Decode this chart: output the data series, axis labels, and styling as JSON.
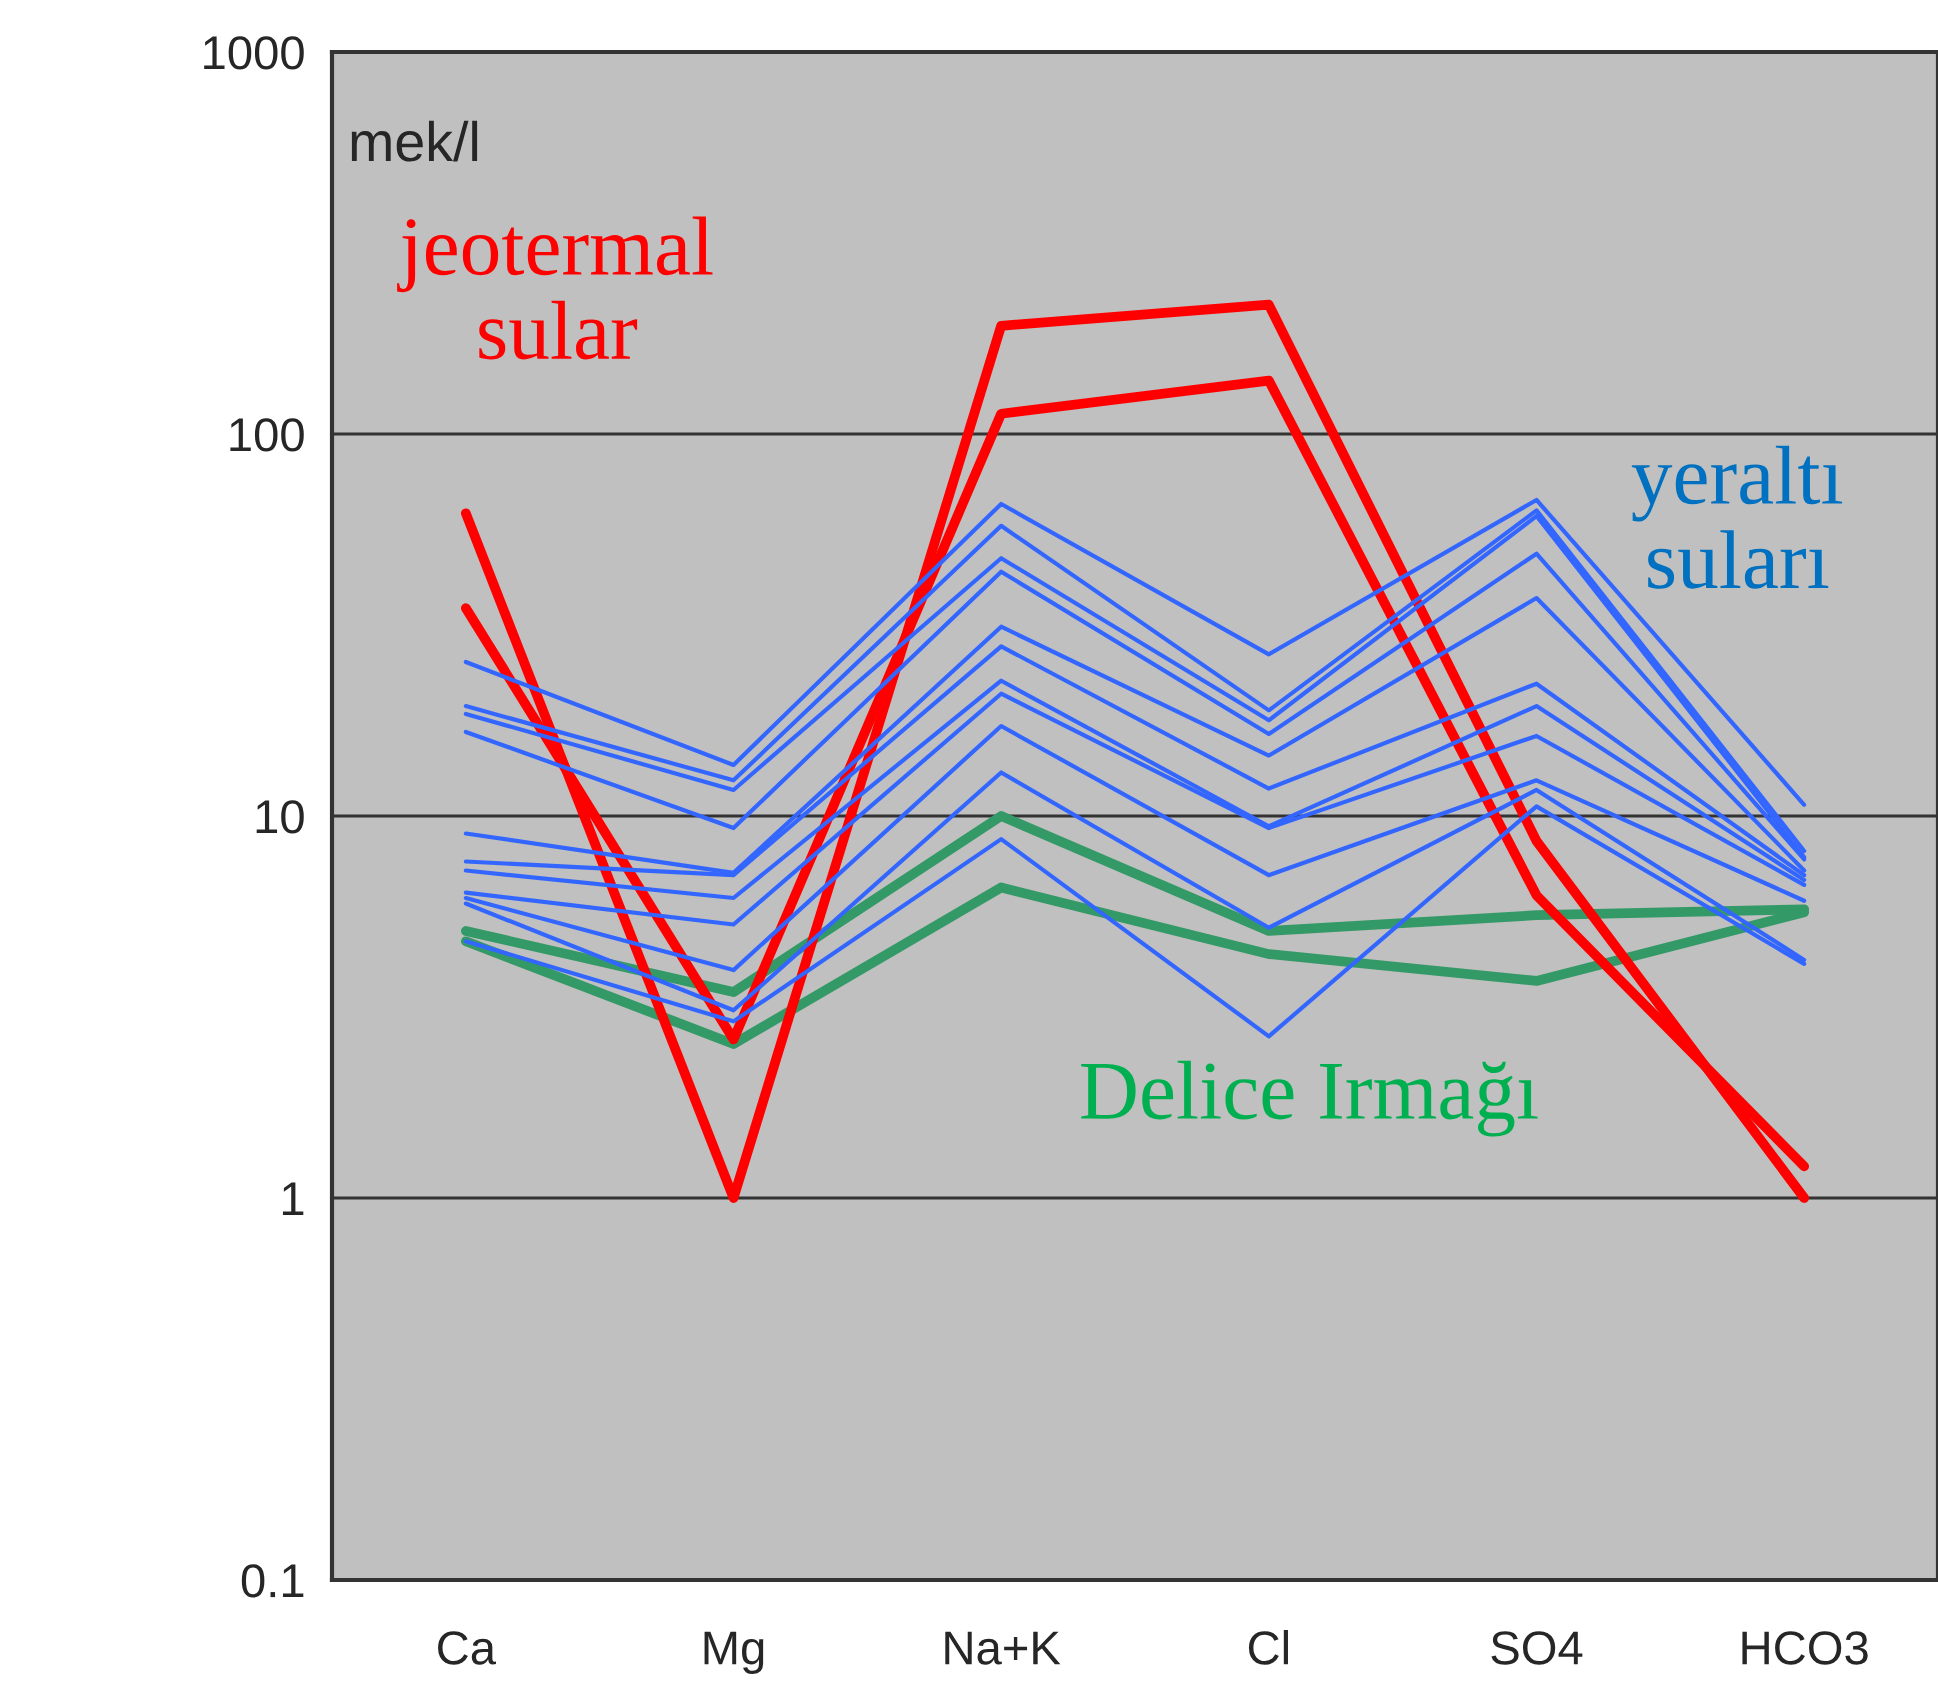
{
  "chart_data": {
    "type": "line",
    "ylabel": "mek/l",
    "categories": [
      "Ca",
      "Mg",
      "Na+K",
      "Cl",
      "SO4",
      "HCO3"
    ],
    "log": "y",
    "ylim": [
      0.1,
      1000
    ],
    "yticks": [
      0.1,
      1,
      10,
      100,
      1000
    ],
    "grid": "y",
    "legend": false,
    "marker": "none",
    "line_style": "solid",
    "series": [
      {
        "color": "#3366ff",
        "values": [
          25.3,
          13.6,
          65.6,
          26.5,
          67.2,
          10.7
        ]
      },
      {
        "color": "#3366ff",
        "values": [
          19.4,
          12.4,
          57.5,
          18.9,
          63.1,
          8.1
        ]
      },
      {
        "color": "#3366ff",
        "values": [
          18.5,
          11.7,
          47.3,
          17.8,
          61,
          7.8
        ]
      },
      {
        "color": "#3366ff",
        "values": [
          16.6,
          9.3,
          43.6,
          16.4,
          48.6,
          7.7
        ]
      },
      {
        "color": "#3366ff",
        "values": [
          9.0,
          7.1,
          31.3,
          14.4,
          37.2,
          7.2
        ]
      },
      {
        "color": "#3366ff",
        "values": [
          7.6,
          7.0,
          27.8,
          11.8,
          22.2,
          7.0
        ]
      },
      {
        "color": "#3366ff",
        "values": [
          7.2,
          6.1,
          22.6,
          9.4,
          19.4,
          6.8
        ]
      },
      {
        "color": "#3366ff",
        "values": [
          6.3,
          5.2,
          20.9,
          9.3,
          16.2,
          6.6
        ]
      },
      {
        "color": "#3366ff",
        "values": [
          6.1,
          3.95,
          17.2,
          7.0,
          12.4,
          6.0
        ]
      },
      {
        "color": "#3366ff",
        "values": [
          5.9,
          3.1,
          13.0,
          5.1,
          11.7,
          4.2
        ]
      },
      {
        "color": "#3366ff",
        "values": [
          4.7,
          2.9,
          8.7,
          2.65,
          10.6,
          4.1
        ]
      },
      {
        "color": "#339966",
        "values": [
          5.0,
          3.46,
          10.0,
          5.0,
          5.5,
          5.7
        ]
      },
      {
        "color": "#339966",
        "values": [
          4.7,
          2.53,
          6.5,
          4.35,
          3.7,
          5.6
        ]
      },
      {
        "color": "#ff0000",
        "values": [
          62,
          1.0,
          192,
          218,
          8.6,
          1.0
        ]
      },
      {
        "color": "#ff0000",
        "values": [
          35,
          2.6,
          113,
          138,
          6.2,
          1.21
        ]
      }
    ],
    "annotations": [
      "jeotermal\nsular",
      "yeraltı\nsuları",
      "Delice Irmağı"
    ]
  }
}
